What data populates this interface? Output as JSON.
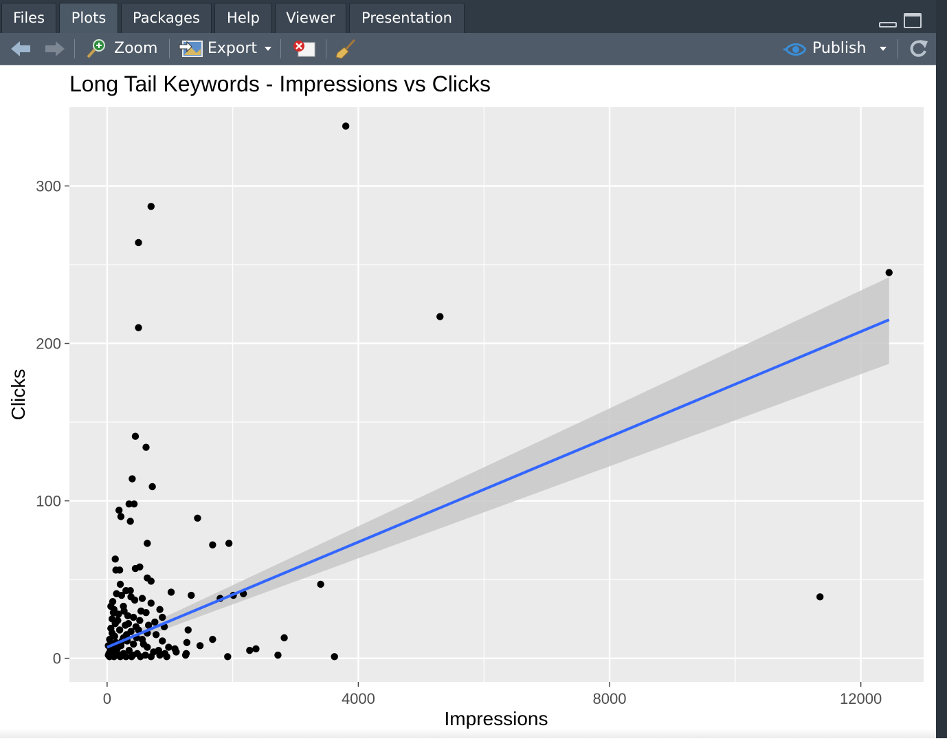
{
  "tabs": [
    {
      "label": "Files",
      "active": false
    },
    {
      "label": "Plots",
      "active": true
    },
    {
      "label": "Packages",
      "active": false
    },
    {
      "label": "Help",
      "active": false
    },
    {
      "label": "Viewer",
      "active": false
    },
    {
      "label": "Presentation",
      "active": false
    }
  ],
  "toolbar": {
    "zoom_label": "Zoom",
    "export_label": "Export",
    "publish_label": "Publish"
  },
  "icons": {
    "back": "arrow-left-icon",
    "forward": "arrow-right-icon",
    "zoom": "magnifier-icon",
    "export": "image-export-icon",
    "remove": "remove-plot-icon",
    "clear": "broom-icon",
    "publish": "publish-icon",
    "refresh": "refresh-icon"
  },
  "colors": {
    "panel_bg": "#ebebeb",
    "grid": "#ffffff",
    "points": "#000000",
    "fit_line": "#3366ff",
    "ribbon": "#c8c8c8",
    "tabbar_bg": "#2f3a45",
    "toolbar_bg": "#4f5b68"
  },
  "chart_data": {
    "type": "scatter",
    "title": "Long Tail Keywords - Impressions vs Clicks",
    "xlabel": "Impressions",
    "ylabel": "Clicks",
    "x_ticks": [
      0,
      4000,
      8000,
      12000
    ],
    "y_ticks": [
      0,
      100,
      200,
      300
    ],
    "xlim": [
      -600,
      13000
    ],
    "ylim": [
      -15,
      350
    ],
    "grid": true,
    "legend": "none",
    "series": [
      {
        "points": [
          [
            3800,
            338
          ],
          [
            700,
            287
          ],
          [
            500,
            264
          ],
          [
            500,
            210
          ],
          [
            5300,
            217
          ],
          [
            12450,
            245
          ],
          [
            450,
            141
          ],
          [
            620,
            134
          ],
          [
            400,
            114
          ],
          [
            720,
            109
          ],
          [
            190,
            94
          ],
          [
            220,
            90
          ],
          [
            350,
            98
          ],
          [
            430,
            98
          ],
          [
            370,
            87
          ],
          [
            1440,
            89
          ],
          [
            640,
            73
          ],
          [
            1680,
            72
          ],
          [
            1940,
            73
          ],
          [
            130,
            63
          ],
          [
            140,
            56
          ],
          [
            520,
            58
          ],
          [
            450,
            57
          ],
          [
            200,
            56
          ],
          [
            640,
            51
          ],
          [
            700,
            49
          ],
          [
            3400,
            47
          ],
          [
            210,
            47
          ],
          [
            300,
            43
          ],
          [
            370,
            43
          ],
          [
            1020,
            42
          ],
          [
            1340,
            40
          ],
          [
            2010,
            40
          ],
          [
            2170,
            41
          ],
          [
            1800,
            38
          ],
          [
            11350,
            39
          ],
          [
            150,
            41
          ],
          [
            230,
            40
          ],
          [
            380,
            39
          ],
          [
            560,
            38
          ],
          [
            440,
            37
          ],
          [
            90,
            36
          ],
          [
            700,
            35
          ],
          [
            840,
            31
          ],
          [
            110,
            31
          ],
          [
            260,
            33
          ],
          [
            620,
            29
          ],
          [
            880,
            26
          ],
          [
            180,
            28
          ],
          [
            330,
            27
          ],
          [
            80,
            25
          ],
          [
            520,
            24
          ],
          [
            760,
            23
          ],
          [
            130,
            22
          ],
          [
            290,
            21
          ],
          [
            460,
            20
          ],
          [
            910,
            20
          ],
          [
            1290,
            18
          ],
          [
            60,
            19
          ],
          [
            200,
            18
          ],
          [
            380,
            17
          ],
          [
            640,
            16
          ],
          [
            780,
            15
          ],
          [
            120,
            14
          ],
          [
            260,
            13
          ],
          [
            2820,
            13
          ],
          [
            1680,
            12
          ],
          [
            880,
            11
          ],
          [
            560,
            12
          ],
          [
            320,
            11
          ],
          [
            140,
            10
          ],
          [
            1270,
            10
          ],
          [
            60,
            9
          ],
          [
            420,
            9
          ],
          [
            1480,
            8
          ],
          [
            220,
            8
          ],
          [
            640,
            7
          ],
          [
            980,
            7
          ],
          [
            1080,
            6
          ],
          [
            2370,
            6
          ],
          [
            2270,
            5
          ],
          [
            820,
            5
          ],
          [
            350,
            5
          ],
          [
            150,
            4
          ],
          [
            1100,
            4
          ],
          [
            740,
            4
          ],
          [
            480,
            3
          ],
          [
            920,
            3
          ],
          [
            30,
            3
          ],
          [
            260,
            3
          ],
          [
            1260,
            3
          ],
          [
            2720,
            2
          ],
          [
            610,
            2
          ],
          [
            410,
            2
          ],
          [
            1250,
            2
          ],
          [
            70,
            2
          ],
          [
            180,
            2
          ],
          [
            840,
            2
          ],
          [
            1920,
            1
          ],
          [
            3620,
            1
          ],
          [
            300,
            1
          ],
          [
            530,
            1
          ],
          [
            110,
            1
          ],
          [
            700,
            1
          ],
          [
            950,
            1
          ],
          [
            40,
            1
          ],
          [
            210,
            1
          ],
          [
            390,
            1
          ],
          [
            20,
            2
          ],
          [
            50,
            5
          ],
          [
            90,
            7
          ],
          [
            160,
            6
          ],
          [
            240,
            11
          ],
          [
            310,
            15
          ],
          [
            170,
            24
          ],
          [
            100,
            29
          ],
          [
            60,
            33
          ],
          [
            40,
            12
          ],
          [
            20,
            8
          ],
          [
            80,
            16
          ],
          [
            270,
            30
          ],
          [
            340,
            22
          ],
          [
            420,
            26
          ],
          [
            500,
            18
          ],
          [
            580,
            9
          ],
          [
            660,
            21
          ],
          [
            540,
            30
          ],
          [
            470,
            13
          ]
        ]
      }
    ],
    "fit": {
      "x": [
        0,
        12450
      ],
      "y": [
        7,
        215
      ],
      "ci_lower": [
        5,
        187
      ],
      "ci_upper": [
        9,
        242
      ]
    }
  }
}
